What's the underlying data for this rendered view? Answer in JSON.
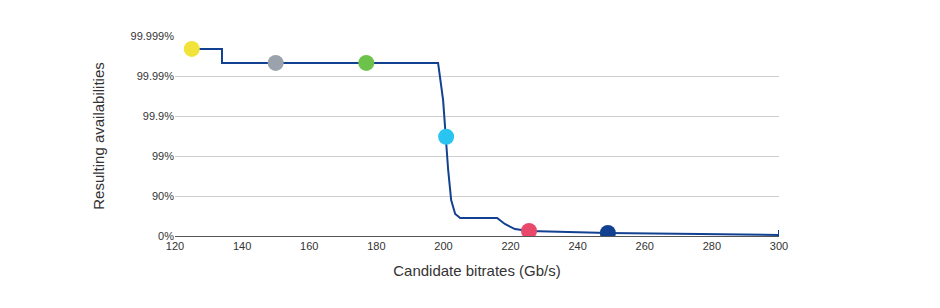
{
  "chart_data": {
    "type": "line",
    "x_label": "Candidate bitrates (Gb/s)",
    "y_label": "Resulting availabilities",
    "xlim": [
      120,
      300
    ],
    "xticks": [
      120,
      140,
      160,
      180,
      200,
      220,
      240,
      260,
      280,
      300
    ],
    "ylim": [
      0,
      99.999
    ],
    "yticks": [
      {
        "value": 0,
        "label": "0%"
      },
      {
        "value": 90,
        "label": "90%"
      },
      {
        "value": 99,
        "label": "99%"
      },
      {
        "value": 99.9,
        "label": "99.9%"
      },
      {
        "value": 99.99,
        "label": "99.99%"
      },
      {
        "value": 99.999,
        "label": "99.999%"
      }
    ],
    "grid": "y",
    "series": [
      {
        "type": "line",
        "color": "#124191",
        "line_style": "solid",
        "x": [
          125,
          134,
          134,
          198.4,
          199.9,
          200.5,
          200.8,
          201.4,
          202.3,
          203.5,
          205,
          216,
          218.3,
          221.3,
          225.5,
          234.7,
          249,
          276.4,
          300,
          300
        ],
        "values": [
          99.9979,
          99.9979,
          99.9953,
          99.9953,
          99.96,
          99.78,
          99.67,
          97.8,
          87.4,
          71.8,
          64.5,
          64.5,
          49.9,
          33,
          25,
          20.6,
          15.9,
          10.9,
          5.6,
          29
        ]
      },
      {
        "type": "scatter",
        "marker": "circle",
        "colors": [
          "#f2e33a",
          "#9aa3ab",
          "#6cc24a",
          "#29c4f0",
          "#e8496a",
          "#124191"
        ],
        "x": [
          125,
          150,
          177,
          200.8,
          225.5,
          249
        ],
        "values": [
          99.9979,
          99.9953,
          99.9953,
          99.67,
          25,
          15.9
        ]
      }
    ]
  }
}
